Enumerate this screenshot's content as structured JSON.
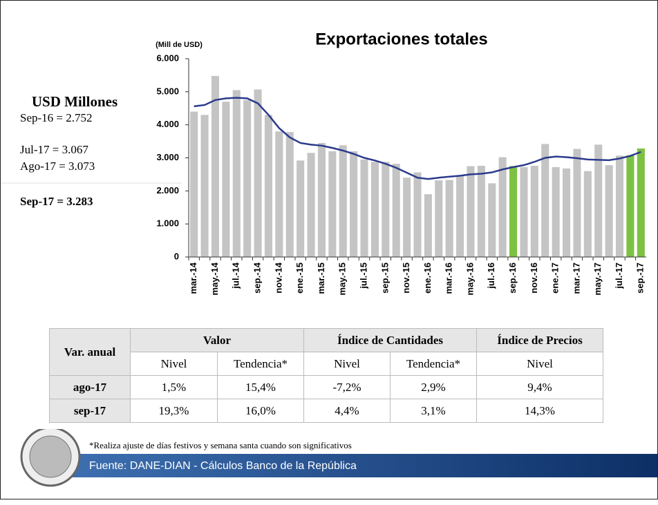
{
  "chart_data": {
    "type": "bar",
    "title": "Exportaciones totales",
    "y_axis_label": "(Mill de USD)",
    "categories": [
      "mar.-14",
      null,
      "may.-14",
      null,
      "jul.-14",
      null,
      "sep.-14",
      null,
      "nov.-14",
      null,
      "ene.-15",
      null,
      "mar.-15",
      null,
      "may.-15",
      null,
      "jul.-15",
      null,
      "sep.-15",
      null,
      "nov.-15",
      null,
      "ene.-16",
      null,
      "mar.-16",
      null,
      "may.-16",
      null,
      "jul.-16",
      null,
      "sep.-16",
      null,
      "nov.-16",
      null,
      "ene.-17",
      null,
      "mar.-17",
      null,
      "may.-17",
      null,
      "jul.-17",
      null,
      "sep.-17"
    ],
    "series": [
      {
        "type": "bar",
        "values": [
          4400,
          4300,
          5480,
          4700,
          5050,
          4750,
          5070,
          4300,
          3800,
          3780,
          2920,
          3150,
          3450,
          3200,
          3380,
          3200,
          2950,
          2880,
          2880,
          2820,
          2400,
          2560,
          1900,
          2320,
          2330,
          2450,
          2750,
          2760,
          2230,
          3020,
          2752,
          2720,
          2760,
          3420,
          2720,
          2680,
          3270,
          2600,
          3400,
          2780,
          3067,
          3073,
          3283
        ],
        "colors": [
          "#c4c4c4",
          "#c4c4c4",
          "#c4c4c4",
          "#c4c4c4",
          "#c4c4c4",
          "#c4c4c4",
          "#c4c4c4",
          "#c4c4c4",
          "#c4c4c4",
          "#c4c4c4",
          "#c4c4c4",
          "#c4c4c4",
          "#c4c4c4",
          "#c4c4c4",
          "#c4c4c4",
          "#c4c4c4",
          "#c4c4c4",
          "#c4c4c4",
          "#c4c4c4",
          "#c4c4c4",
          "#c4c4c4",
          "#c4c4c4",
          "#c4c4c4",
          "#c4c4c4",
          "#c4c4c4",
          "#c4c4c4",
          "#c4c4c4",
          "#c4c4c4",
          "#c4c4c4",
          "#c4c4c4",
          "#7dc142",
          "#c4c4c4",
          "#c4c4c4",
          "#c4c4c4",
          "#c4c4c4",
          "#c4c4c4",
          "#c4c4c4",
          "#c4c4c4",
          "#c4c4c4",
          "#c4c4c4",
          "#c4c4c4",
          "#7dc142",
          "#7dc142"
        ]
      },
      {
        "type": "line",
        "color": "#2b3a8c",
        "values": [
          4560,
          4600,
          4750,
          4800,
          4820,
          4800,
          4650,
          4300,
          3900,
          3620,
          3450,
          3400,
          3370,
          3300,
          3220,
          3120,
          3000,
          2920,
          2820,
          2700,
          2550,
          2400,
          2360,
          2400,
          2430,
          2460,
          2500,
          2520,
          2560,
          2650,
          2720,
          2780,
          2880,
          3000,
          3040,
          3020,
          2990,
          2950,
          2940,
          2930,
          2980,
          3060,
          3180
        ]
      }
    ],
    "ylim": [
      0,
      6000
    ],
    "yticks": [
      0,
      {
        "value": 1000,
        "label": "1.000"
      },
      {
        "value": 2000,
        "label": "2.000"
      },
      {
        "value": 3000,
        "label": "3.000"
      },
      {
        "value": 4000,
        "label": "4.000"
      },
      {
        "value": 5000,
        "label": "5.000"
      },
      {
        "value": 6000,
        "label": "6.000"
      }
    ]
  },
  "sidebar": {
    "title": "USD Millones",
    "lines": [
      "Sep-16 = 2.752",
      "Jul-17 = 3.067",
      "Ago-17 = 3.073",
      "Sep-17 = 3.283"
    ]
  },
  "table": {
    "corner": "Var. anual",
    "groups": [
      "Valor",
      "Índice de Cantidades",
      "Índice de Precios"
    ],
    "subheaders": [
      "Nivel",
      "Tendencia*",
      "Nivel",
      "Tendencia*",
      "Nivel"
    ],
    "rows": [
      [
        "ago-17",
        "1,5%",
        "15,4%",
        "-7,2%",
        "2,9%",
        "9,4%"
      ],
      [
        "sep-17",
        "19,3%",
        "16,0%",
        "4,4%",
        "3,1%",
        "14,3%"
      ]
    ]
  },
  "footnote": "*Realiza ajuste de días festivos y semana santa cuando son significativos",
  "source": "Fuente: DANE-DIAN - Cálculos Banco de la República"
}
